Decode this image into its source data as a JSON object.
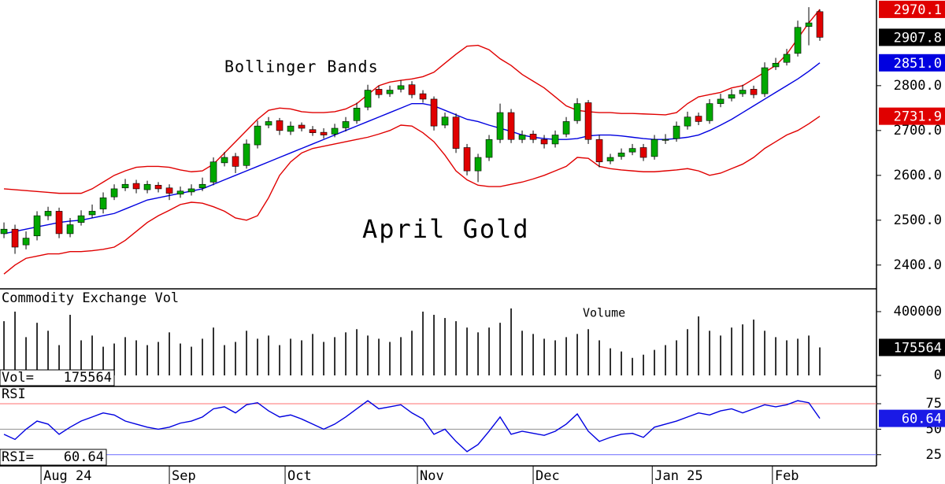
{
  "chart_data": [
    {
      "type": "candlestick",
      "title": "April Gold",
      "annotation": "Bollinger Bands",
      "xlim": [
        -0.36,
        79.14
      ],
      "ylim": [
        2347,
        2991
      ],
      "yticks": [
        {
          "value": 2400,
          "label": "2400.0"
        },
        {
          "value": 2500,
          "label": "2500.0"
        },
        {
          "value": 2600,
          "label": "2600.0"
        },
        {
          "value": 2700,
          "label": "2700.0"
        },
        {
          "value": 2800,
          "label": "2800.0"
        }
      ],
      "up_color": "#00a800",
      "down_color": "#e00000",
      "close_label_color": "#000000",
      "open": [
        2470,
        2480,
        2445,
        2465,
        2510,
        2520,
        2470,
        2495,
        2512,
        2525,
        2552,
        2572,
        2582,
        2568,
        2578,
        2572,
        2558,
        2563,
        2572,
        2585,
        2628,
        2642,
        2622,
        2668,
        2712,
        2722,
        2698,
        2712,
        2702,
        2696,
        2692,
        2706,
        2722,
        2752,
        2792,
        2782,
        2792,
        2802,
        2782,
        2770,
        2712,
        2730,
        2662,
        2610,
        2640,
        2680,
        2740,
        2680,
        2692,
        2680,
        2670,
        2692,
        2722,
        2762,
        2680,
        2632,
        2642,
        2652,
        2662,
        2642,
        2678,
        2682,
        2710,
        2732,
        2722,
        2760,
        2772,
        2782,
        2792,
        2782,
        2842,
        2852,
        2872,
        2932,
        2965
      ],
      "high": [
        2495,
        2490,
        2475,
        2520,
        2530,
        2528,
        2505,
        2522,
        2535,
        2562,
        2580,
        2592,
        2590,
        2588,
        2585,
        2580,
        2575,
        2580,
        2595,
        2640,
        2652,
        2650,
        2680,
        2722,
        2730,
        2728,
        2720,
        2718,
        2710,
        2705,
        2715,
        2730,
        2762,
        2802,
        2800,
        2800,
        2812,
        2810,
        2790,
        2776,
        2740,
        2738,
        2670,
        2648,
        2690,
        2760,
        2748,
        2700,
        2700,
        2690,
        2700,
        2730,
        2772,
        2768,
        2690,
        2648,
        2660,
        2670,
        2670,
        2690,
        2692,
        2720,
        2742,
        2740,
        2770,
        2782,
        2792,
        2802,
        2800,
        2852,
        2862,
        2882,
        2945,
        2975,
        2970
      ],
      "low": [
        2460,
        2425,
        2435,
        2455,
        2500,
        2460,
        2462,
        2488,
        2505,
        2515,
        2545,
        2565,
        2560,
        2560,
        2562,
        2545,
        2550,
        2555,
        2565,
        2578,
        2620,
        2605,
        2615,
        2660,
        2705,
        2690,
        2690,
        2698,
        2688,
        2682,
        2685,
        2698,
        2715,
        2745,
        2772,
        2775,
        2785,
        2772,
        2762,
        2700,
        2705,
        2650,
        2600,
        2585,
        2632,
        2672,
        2672,
        2672,
        2672,
        2660,
        2662,
        2685,
        2715,
        2670,
        2618,
        2625,
        2635,
        2645,
        2632,
        2635,
        2670,
        2675,
        2702,
        2712,
        2715,
        2752,
        2765,
        2775,
        2772,
        2775,
        2835,
        2845,
        2865,
        2890,
        2900
      ],
      "close": [
        2480,
        2440,
        2460,
        2510,
        2520,
        2470,
        2490,
        2510,
        2520,
        2550,
        2570,
        2580,
        2570,
        2580,
        2570,
        2560,
        2565,
        2570,
        2580,
        2630,
        2640,
        2620,
        2670,
        2710,
        2720,
        2700,
        2710,
        2705,
        2695,
        2690,
        2705,
        2720,
        2750,
        2790,
        2780,
        2790,
        2800,
        2780,
        2770,
        2710,
        2730,
        2660,
        2610,
        2640,
        2680,
        2740,
        2680,
        2690,
        2680,
        2670,
        2690,
        2720,
        2760,
        2680,
        2630,
        2640,
        2650,
        2660,
        2640,
        2680,
        2680,
        2710,
        2730,
        2720,
        2760,
        2770,
        2780,
        2790,
        2780,
        2840,
        2850,
        2870,
        2930,
        2940,
        2907.8
      ],
      "series": [
        {
          "color": "#e00000",
          "values": [
            2570,
            2568,
            2566,
            2564,
            2562,
            2560,
            2560,
            2560,
            2570,
            2585,
            2600,
            2610,
            2618,
            2620,
            2620,
            2618,
            2612,
            2608,
            2610,
            2625,
            2650,
            2675,
            2700,
            2725,
            2745,
            2750,
            2748,
            2742,
            2740,
            2740,
            2742,
            2748,
            2760,
            2780,
            2800,
            2808,
            2812,
            2815,
            2820,
            2830,
            2850,
            2870,
            2888,
            2890,
            2880,
            2860,
            2845,
            2825,
            2810,
            2795,
            2775,
            2755,
            2745,
            2742,
            2740,
            2740,
            2738,
            2738,
            2737,
            2736,
            2735,
            2740,
            2760,
            2775,
            2780,
            2785,
            2795,
            2800,
            2815,
            2830,
            2845,
            2870,
            2905,
            2940,
            2970.1
          ]
        },
        {
          "color": "#0000e0",
          "last_label": "2851.0",
          "values": [
            2470,
            2475,
            2480,
            2485,
            2490,
            2495,
            2498,
            2500,
            2505,
            2510,
            2515,
            2525,
            2535,
            2545,
            2550,
            2555,
            2560,
            2565,
            2570,
            2580,
            2590,
            2600,
            2610,
            2620,
            2630,
            2640,
            2650,
            2660,
            2670,
            2680,
            2690,
            2700,
            2710,
            2720,
            2730,
            2740,
            2750,
            2760,
            2760,
            2755,
            2745,
            2735,
            2725,
            2720,
            2712,
            2705,
            2698,
            2690,
            2685,
            2682,
            2680,
            2680,
            2682,
            2688,
            2690,
            2690,
            2688,
            2685,
            2682,
            2680,
            2680,
            2682,
            2685,
            2690,
            2700,
            2712,
            2725,
            2740,
            2755,
            2770,
            2785,
            2800,
            2815,
            2832,
            2851
          ]
        },
        {
          "color": "#e00000",
          "values": [
            2380,
            2400,
            2415,
            2420,
            2425,
            2425,
            2430,
            2430,
            2432,
            2435,
            2440,
            2455,
            2475,
            2495,
            2510,
            2522,
            2535,
            2540,
            2538,
            2530,
            2520,
            2505,
            2500,
            2510,
            2550,
            2600,
            2630,
            2650,
            2660,
            2665,
            2670,
            2675,
            2680,
            2685,
            2692,
            2700,
            2712,
            2710,
            2695,
            2675,
            2645,
            2610,
            2590,
            2578,
            2575,
            2575,
            2580,
            2585,
            2592,
            2600,
            2610,
            2620,
            2640,
            2638,
            2620,
            2615,
            2612,
            2610,
            2608,
            2608,
            2610,
            2612,
            2615,
            2610,
            2600,
            2605,
            2615,
            2625,
            2640,
            2660,
            2675,
            2690,
            2700,
            2715,
            2731.9
          ]
        }
      ]
    },
    {
      "type": "bar",
      "title": "Commodity Exchange Vol",
      "annotation": "Volume",
      "readout_label": "Vol=",
      "xlim": [
        -0.36,
        79.14
      ],
      "ylim": [
        -64000,
        538000
      ],
      "yticks": [
        0,
        400000
      ],
      "color": "#000000",
      "last_color": "#000000",
      "values": [
        340000,
        400000,
        240000,
        330000,
        280000,
        190000,
        380000,
        220000,
        250000,
        180000,
        200000,
        240000,
        220000,
        190000,
        210000,
        270000,
        200000,
        180000,
        230000,
        300000,
        190000,
        210000,
        280000,
        230000,
        250000,
        190000,
        230000,
        220000,
        260000,
        210000,
        240000,
        270000,
        290000,
        250000,
        230000,
        210000,
        240000,
        280000,
        400000,
        380000,
        360000,
        340000,
        300000,
        270000,
        300000,
        330000,
        420000,
        280000,
        260000,
        230000,
        220000,
        240000,
        260000,
        290000,
        220000,
        170000,
        150000,
        110000,
        130000,
        160000,
        190000,
        220000,
        290000,
        370000,
        280000,
        250000,
        300000,
        320000,
        350000,
        280000,
        240000,
        220000,
        230000,
        250000,
        175564
      ]
    },
    {
      "type": "line",
      "title": "RSI",
      "readout_label": "RSI=",
      "xlim": [
        -0.36,
        79.14
      ],
      "ylim": [
        14,
        92
      ],
      "yticks": [
        25,
        50,
        75
      ],
      "grid_colors": [
        "#6a6aff",
        "#909090",
        "#ff7070"
      ],
      "color": "#0000e0",
      "last_color": "#1a1ae6",
      "xticks": [
        {
          "value": 3.36,
          "label": "Aug 24"
        },
        {
          "value": 15,
          "label": "Sep"
        },
        {
          "value": 25.5,
          "label": "Oct"
        },
        {
          "value": 37.5,
          "label": "Nov"
        },
        {
          "value": 48,
          "label": "Dec"
        },
        {
          "value": 58.8,
          "label": "Jan 25"
        },
        {
          "value": 69.7,
          "label": "Feb"
        }
      ],
      "values": [
        45,
        40,
        50,
        58,
        55,
        45,
        52,
        58,
        62,
        66,
        64,
        58,
        55,
        52,
        50,
        52,
        56,
        58,
        62,
        70,
        72,
        66,
        74,
        76,
        68,
        62,
        64,
        60,
        55,
        50,
        55,
        62,
        70,
        78,
        70,
        72,
        74,
        66,
        60,
        45,
        50,
        38,
        28,
        35,
        48,
        62,
        45,
        48,
        46,
        44,
        48,
        55,
        65,
        48,
        38,
        42,
        45,
        46,
        42,
        52,
        55,
        58,
        62,
        66,
        64,
        68,
        70,
        66,
        70,
        74,
        72,
        74,
        78,
        76,
        60.64
      ]
    }
  ]
}
